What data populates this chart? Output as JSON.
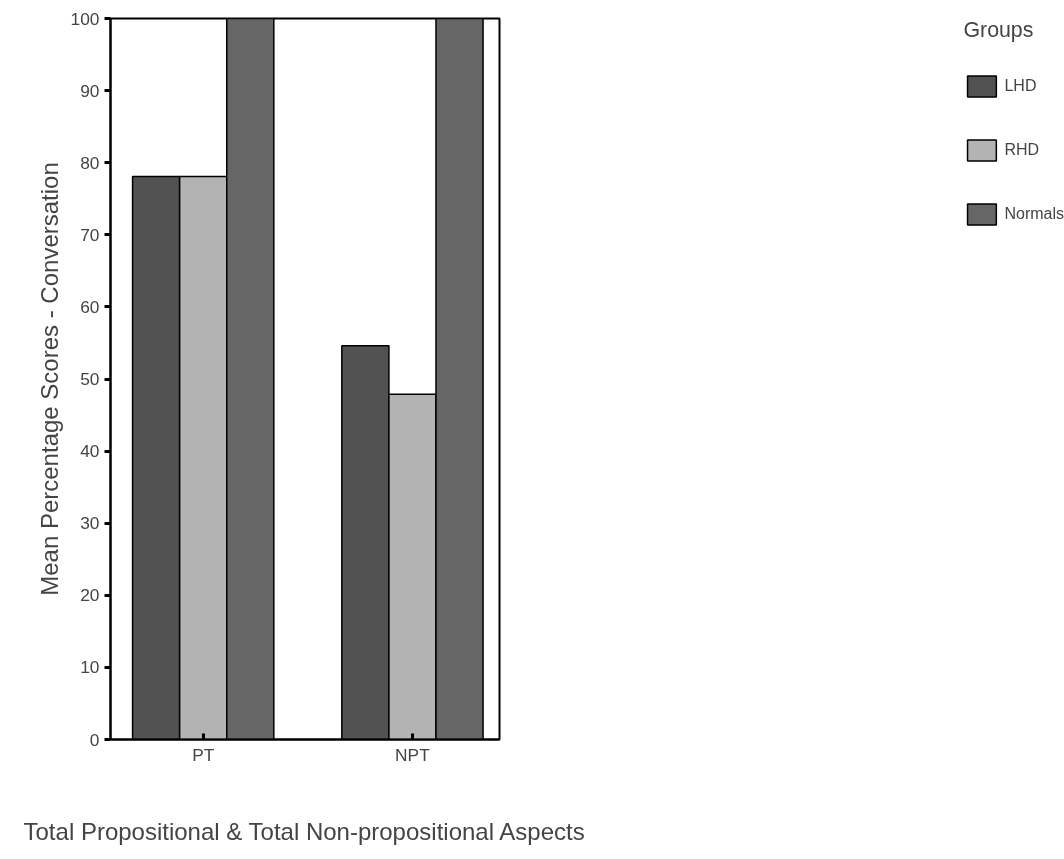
{
  "chart_data": {
    "type": "bar",
    "xlabel": "Total Propositional & Total Non-propositional Aspects",
    "ylabel": "Mean Percentage Scores - Conversation",
    "legend_title": "Groups",
    "categories": [
      "PT",
      "NPT"
    ],
    "series": [
      {
        "name": "LHD",
        "color": "#525252",
        "values": [
          78.1,
          54.6
        ]
      },
      {
        "name": "RHD",
        "color": "#b3b3b3",
        "values": [
          78.1,
          47.9
        ]
      },
      {
        "name": "Normals",
        "color": "#666666",
        "values": [
          100,
          100
        ]
      }
    ],
    "ylim": [
      0,
      100
    ],
    "yticks": [
      0,
      10,
      20,
      30,
      40,
      50,
      60,
      70,
      80,
      90,
      100
    ],
    "grid": false,
    "legend": "right"
  }
}
